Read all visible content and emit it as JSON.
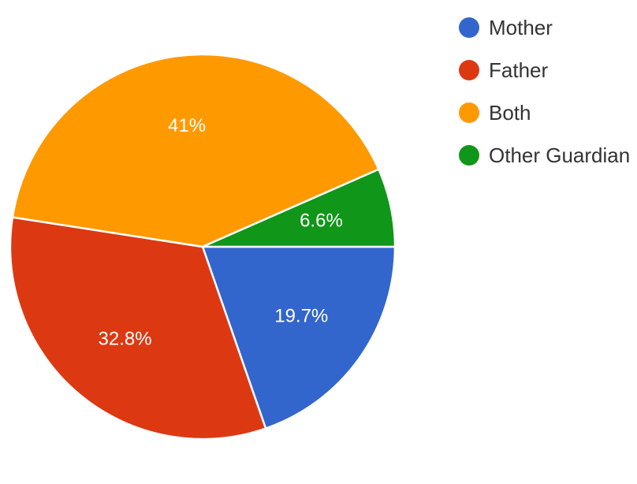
{
  "chart_data": {
    "type": "pie",
    "title": "",
    "slices": [
      {
        "label": "Mother",
        "value": 19.7,
        "display": "19.7%",
        "color": "#3366cc"
      },
      {
        "label": "Father",
        "value": 32.8,
        "display": "32.8%",
        "color": "#dc3912"
      },
      {
        "label": "Both",
        "value": 41,
        "display": "41%",
        "color": "#ff9900"
      },
      {
        "label": "Other Guardian",
        "value": 6.6,
        "display": "6.6%",
        "color": "#109618"
      }
    ],
    "legend_position": "top-right"
  }
}
